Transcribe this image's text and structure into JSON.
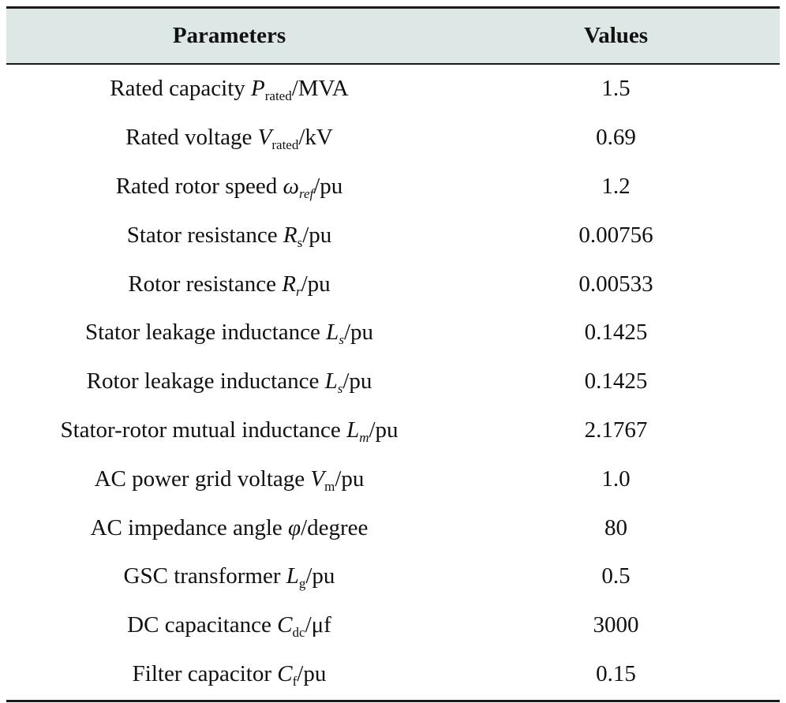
{
  "table": {
    "headers": {
      "parameters": "Parameters",
      "values": "Values"
    },
    "rows": [
      {
        "label": "Rated capacity ",
        "symbol": "P",
        "subscript": "rated",
        "sub_italic": false,
        "unit": "/MVA",
        "value": "1.5"
      },
      {
        "label": "Rated voltage ",
        "symbol": "V",
        "subscript": "rated",
        "sub_italic": false,
        "unit": "/kV",
        "value": "0.69"
      },
      {
        "label": "Rated rotor speed ",
        "symbol": "ω",
        "subscript": "ref",
        "sub_italic": true,
        "unit": "/pu",
        "value": "1.2"
      },
      {
        "label": "Stator resistance ",
        "symbol": "R",
        "subscript": "s",
        "sub_italic": false,
        "unit": "/pu",
        "value": "0.00756"
      },
      {
        "label": "Rotor resistance ",
        "symbol": "R",
        "subscript": "r",
        "sub_italic": true,
        "unit": "/pu",
        "value": "0.00533"
      },
      {
        "label": "Stator leakage inductance ",
        "symbol": "L",
        "subscript": "s",
        "sub_italic": true,
        "unit": "/pu",
        "value": "0.1425"
      },
      {
        "label": "Rotor leakage inductance ",
        "symbol": "L",
        "subscript": "s",
        "sub_italic": true,
        "unit": "/pu",
        "value": "0.1425"
      },
      {
        "label": "Stator-rotor mutual inductance ",
        "symbol": "L",
        "subscript": "m",
        "sub_italic": true,
        "unit": "/pu",
        "value": "2.1767"
      },
      {
        "label": "AC power grid voltage ",
        "symbol": "V",
        "subscript": "m",
        "sub_italic": false,
        "unit": "/pu",
        "value": "1.0"
      },
      {
        "label": "AC impedance angle ",
        "symbol": "φ",
        "subscript": "",
        "sub_italic": false,
        "unit": "/degree",
        "value": "80"
      },
      {
        "label": "GSC transformer ",
        "symbol": "L",
        "subscript": "g",
        "sub_italic": false,
        "unit": "/pu",
        "value": "0.5"
      },
      {
        "label": "DC capacitance ",
        "symbol": "C",
        "subscript": "dc",
        "sub_italic": false,
        "unit": "/μf",
        "value": "3000"
      },
      {
        "label": "Filter capacitor ",
        "symbol": "C",
        "subscript": "f",
        "sub_italic": false,
        "unit": "/pu",
        "value": "0.15"
      }
    ]
  }
}
